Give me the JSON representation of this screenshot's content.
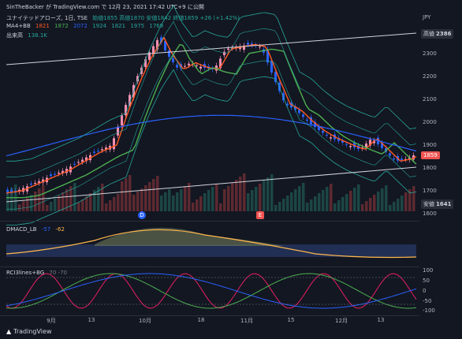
{
  "header": {
    "publisher": "SinTheBacker が TradingView.com で 12月 23, 2021 17:42 UTC+9 に公開",
    "symbol": "ユナイテッドアローズ, 1日, TSE",
    "ohlc": "始値1855  高値1870  安値1842  終値1859  +26 (+1.42%)",
    "ma_label": "MA4+BB",
    "ma_values": [
      "1821",
      "1872",
      "2072",
      "1924",
      "1821",
      "1975",
      "1769"
    ],
    "volume_label": "出来高",
    "volume_value": "138.1K"
  },
  "price_axis": {
    "currency": "JPY",
    "ticks": [
      "2300",
      "2200",
      "2100",
      "2000",
      "1900",
      "1800",
      "1700",
      "1600"
    ],
    "high_label": "高値",
    "high_value": "2386",
    "last_value": "1859",
    "low_label": "安値",
    "low_value": "1641"
  },
  "macd": {
    "label": "DMACD_LB",
    "v1": "-57",
    "v2": "-62"
  },
  "rci": {
    "label": "RCI3lines+BG",
    "values": "70  -70",
    "ticks": [
      "100",
      "50",
      "0",
      "-50",
      "-100"
    ]
  },
  "markers": {
    "dividend": "D",
    "earnings": "E"
  },
  "x_axis": [
    "9月",
    "13",
    "10月",
    "18",
    "11月",
    "15",
    "12月",
    "13"
  ],
  "footer": {
    "brand": "TradingView"
  },
  "colors": {
    "up": "#ef5350",
    "down": "#2962ff",
    "ma_short": "#ff5722",
    "ma_mid": "#4caf50",
    "bb": "#26a69a",
    "ma_long": "#2962ff"
  }
}
